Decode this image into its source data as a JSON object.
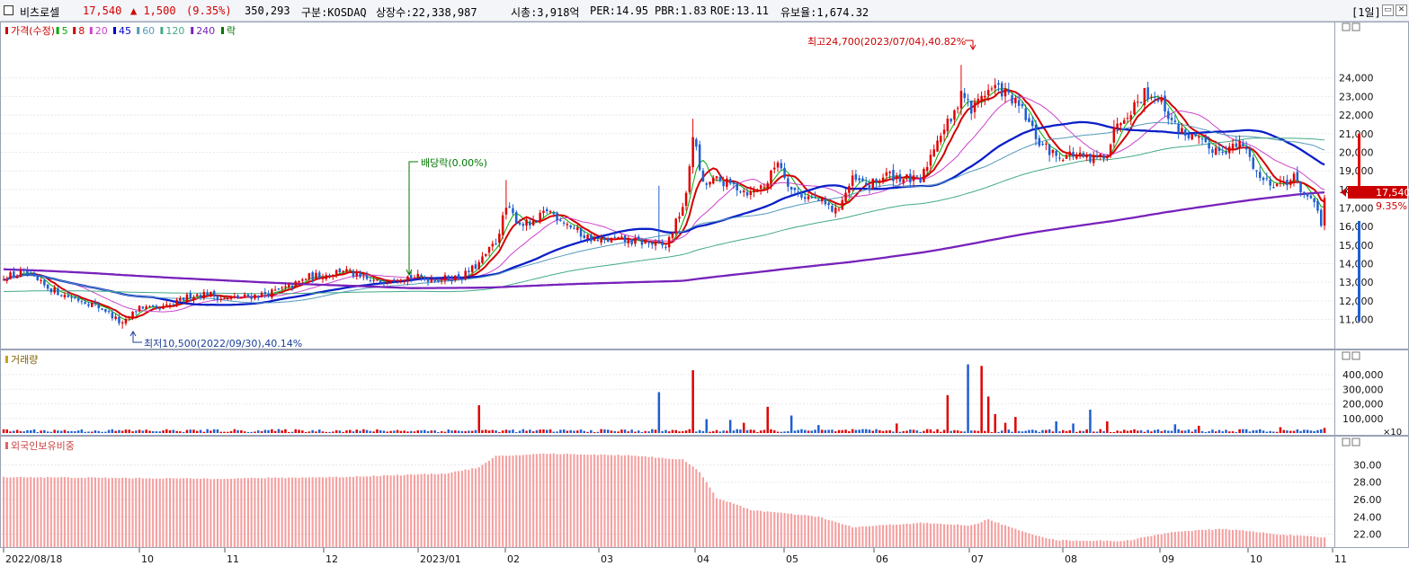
{
  "header": {
    "stock_name": "비츠로셀",
    "price": "17,540",
    "change": "▲ 1,500",
    "change_pct": "(9.35%)",
    "volume": "350,293",
    "market": "구분:KOSDAQ",
    "listed_shares": "상장수:22,338,987",
    "market_cap": "시총:3,918억",
    "per": "PER:14.95",
    "pbr": "PBR:1.83",
    "roe": "ROE:13.11",
    "reserve_ratio": "유보율:1,674.32",
    "period": "[1일]"
  },
  "price_panel": {
    "legend": [
      {
        "label": "가격(수정)",
        "color": "#cc0000"
      },
      {
        "label": "5",
        "color": "#00aa00"
      },
      {
        "label": "8",
        "color": "#cc0000"
      },
      {
        "label": "20",
        "color": "#cc44cc"
      },
      {
        "label": "45",
        "color": "#0000cc"
      },
      {
        "label": "60",
        "color": "#5599bb"
      },
      {
        "label": "120",
        "color": "#44aa88"
      },
      {
        "label": "240",
        "color": "#7722bb"
      },
      {
        "label": "락",
        "color": "#007700"
      }
    ],
    "annotation_high": "최고24,700(2023/07/04),40.82%",
    "annotation_low": "최저10,500(2022/09/30),40.14%",
    "annotation_dividend": "배당락(0.00%)",
    "current_price_label": "17,540",
    "current_pct_label": "9.35%"
  },
  "volume_panel": {
    "legend": "거래량",
    "unit": "×10"
  },
  "foreign_panel": {
    "legend": "외국인보유비중"
  },
  "chart_data": [
    {
      "type": "candlestick",
      "title": "가격(수정)",
      "x_labels": [
        "2022/08/18",
        "10",
        "11",
        "12",
        "2023/01",
        "02",
        "03",
        "04",
        "05",
        "06",
        "07",
        "08",
        "09",
        "10",
        "11"
      ],
      "y_ticks": [
        11000,
        12000,
        13000,
        14000,
        15000,
        16000,
        17000,
        18000,
        19000,
        20000,
        21000,
        22000,
        23000,
        24000
      ],
      "ylim": [
        10300,
        25100
      ],
      "close_anchors": [
        [
          0,
          13300
        ],
        [
          6,
          13500
        ],
        [
          12,
          12800
        ],
        [
          18,
          12300
        ],
        [
          25,
          11900
        ],
        [
          30,
          11500
        ],
        [
          35,
          10700
        ],
        [
          40,
          11700
        ],
        [
          45,
          11500
        ],
        [
          50,
          11800
        ],
        [
          55,
          12300
        ],
        [
          60,
          12400
        ],
        [
          65,
          12100
        ],
        [
          70,
          12200
        ],
        [
          75,
          12300
        ],
        [
          80,
          12500
        ],
        [
          85,
          12800
        ],
        [
          90,
          13300
        ],
        [
          95,
          13400
        ],
        [
          100,
          13700
        ],
        [
          105,
          13200
        ],
        [
          110,
          13000
        ],
        [
          115,
          13300
        ],
        [
          120,
          13300
        ],
        [
          125,
          13200
        ],
        [
          130,
          13200
        ],
        [
          135,
          13300
        ],
        [
          140,
          14000
        ],
        [
          145,
          15200
        ],
        [
          148,
          17000
        ],
        [
          152,
          16200
        ],
        [
          156,
          16100
        ],
        [
          160,
          16900
        ],
        [
          165,
          16300
        ],
        [
          170,
          15600
        ],
        [
          175,
          15200
        ],
        [
          180,
          15300
        ],
        [
          185,
          15200
        ],
        [
          190,
          15100
        ],
        [
          195,
          14900
        ],
        [
          198,
          16200
        ],
        [
          201,
          17600
        ],
        [
          203,
          21000
        ],
        [
          206,
          18200
        ],
        [
          210,
          18500
        ],
        [
          215,
          18200
        ],
        [
          220,
          17800
        ],
        [
          225,
          18400
        ],
        [
          228,
          19600
        ],
        [
          232,
          18000
        ],
        [
          235,
          17700
        ],
        [
          240,
          17400
        ],
        [
          245,
          16800
        ],
        [
          250,
          18500
        ],
        [
          255,
          18200
        ],
        [
          260,
          18800
        ],
        [
          265,
          18600
        ],
        [
          270,
          18400
        ],
        [
          275,
          20800
        ],
        [
          280,
          22000
        ],
        [
          282,
          23400
        ],
        [
          285,
          22200
        ],
        [
          288,
          23100
        ],
        [
          292,
          23500
        ],
        [
          295,
          23200
        ],
        [
          300,
          22200
        ],
        [
          305,
          20500
        ],
        [
          310,
          19800
        ],
        [
          315,
          19900
        ],
        [
          320,
          19500
        ],
        [
          325,
          20000
        ],
        [
          328,
          21700
        ],
        [
          332,
          22300
        ],
        [
          336,
          23200
        ],
        [
          340,
          23000
        ],
        [
          345,
          21400
        ],
        [
          350,
          20800
        ],
        [
          355,
          20200
        ],
        [
          360,
          20200
        ],
        [
          365,
          20400
        ],
        [
          370,
          18600
        ],
        [
          375,
          18300
        ],
        [
          380,
          18600
        ],
        [
          385,
          17300
        ],
        [
          388,
          16600
        ],
        [
          389,
          17540
        ]
      ],
      "last": {
        "date_index": 389,
        "close": 17540,
        "change": 1500,
        "change_pct": 9.35
      },
      "high": {
        "value": 24700,
        "date": "2023/07/04"
      },
      "low": {
        "value": 10500,
        "date": "2022/09/30"
      },
      "moving_averages": [
        5,
        8,
        20,
        45,
        60,
        120,
        240
      ]
    },
    {
      "type": "bar",
      "title": "거래량",
      "y_ticks": [
        100000,
        200000,
        300000,
        400000
      ],
      "ylim": [
        0,
        480000
      ],
      "spikes": [
        [
          140,
          190000
        ],
        [
          193,
          280000
        ],
        [
          203,
          430000
        ],
        [
          207,
          95000
        ],
        [
          214,
          90000
        ],
        [
          218,
          70000
        ],
        [
          225,
          180000
        ],
        [
          232,
          120000
        ],
        [
          240,
          55000
        ],
        [
          263,
          65000
        ],
        [
          278,
          260000
        ],
        [
          284,
          470000
        ],
        [
          288,
          460000
        ],
        [
          290,
          250000
        ],
        [
          292,
          130000
        ],
        [
          295,
          70000
        ],
        [
          298,
          110000
        ],
        [
          310,
          80000
        ],
        [
          315,
          65000
        ],
        [
          320,
          160000
        ],
        [
          325,
          80000
        ],
        [
          345,
          60000
        ],
        [
          352,
          50000
        ],
        [
          376,
          40000
        ],
        [
          389,
          35000
        ]
      ],
      "baseline_level": 15000
    },
    {
      "type": "bar",
      "title": "외국인보유비중",
      "y_ticks": [
        22,
        24,
        26,
        28,
        30
      ],
      "ylim": [
        20.5,
        31.6
      ],
      "anchors": [
        [
          0,
          28.6
        ],
        [
          30,
          28.5
        ],
        [
          60,
          28.4
        ],
        [
          100,
          28.6
        ],
        [
          130,
          29.0
        ],
        [
          140,
          29.7
        ],
        [
          145,
          31.0
        ],
        [
          160,
          31.3
        ],
        [
          185,
          31.1
        ],
        [
          200,
          30.6
        ],
        [
          205,
          29.2
        ],
        [
          210,
          26.2
        ],
        [
          220,
          24.8
        ],
        [
          240,
          24.0
        ],
        [
          250,
          22.8
        ],
        [
          270,
          23.3
        ],
        [
          285,
          23.0
        ],
        [
          290,
          23.7
        ],
        [
          300,
          22.3
        ],
        [
          310,
          21.3
        ],
        [
          330,
          21.2
        ],
        [
          345,
          22.3
        ],
        [
          360,
          22.6
        ],
        [
          375,
          22.0
        ],
        [
          389,
          21.6
        ]
      ]
    }
  ]
}
